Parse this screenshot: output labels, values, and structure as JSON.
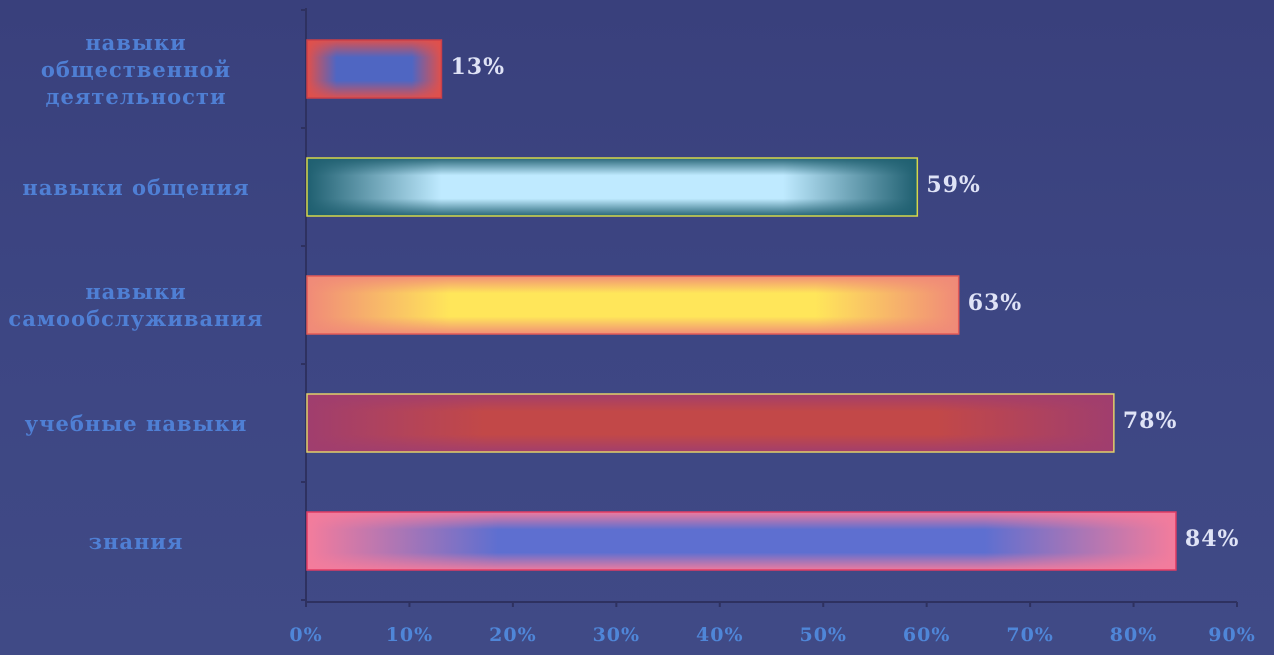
{
  "chart_data": {
    "type": "bar",
    "orientation": "horizontal",
    "categories": [
      "навыки\nобщественной\nдеятельности",
      "навыки общения",
      "навыки\nсамообслуживания",
      "учебные навыки",
      "знания"
    ],
    "values": [
      13,
      59,
      63,
      78,
      84
    ],
    "value_labels": [
      "13%",
      "59%",
      "63%",
      "78%",
      "84%"
    ],
    "xlim": [
      0,
      90
    ],
    "xticks": [
      "0%",
      "10%",
      "20%",
      "30%",
      "40%",
      "50%",
      "60%",
      "70%",
      "80%",
      "90%"
    ],
    "title": "",
    "xlabel": "",
    "ylabel": "",
    "grid": false,
    "bar_colors": [
      {
        "edge": "#e2504a",
        "center": "#4f66c2",
        "border": "#c9404a"
      },
      {
        "edge": "#1f5f70",
        "center": "#bfeaff",
        "border": "#d6d84a"
      },
      {
        "edge": "#f08a78",
        "center": "#ffe65a",
        "border": "#e25a58"
      },
      {
        "edge": "#a03e6e",
        "center": "#c24848",
        "border": "#e0d06a"
      },
      {
        "edge": "#f47c9c",
        "center": "#5e6fd0",
        "border": "#e03c64"
      }
    ],
    "colors": {
      "background": "#3b4480",
      "category_text": "#4f7fd4",
      "value_text": "#dfe3f6",
      "tick_text": "#4f86d8",
      "axis": "#2e3160"
    }
  }
}
